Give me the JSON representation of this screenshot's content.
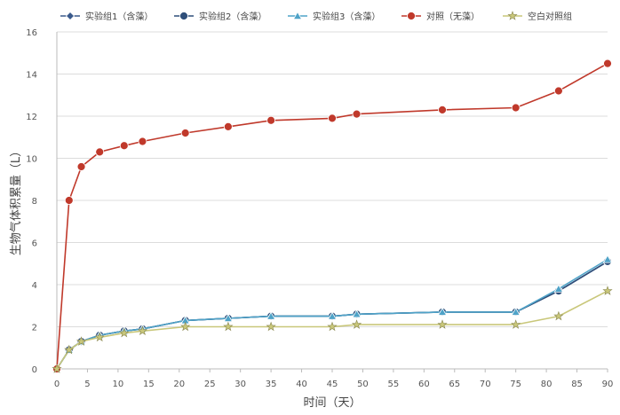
{
  "chart_data": {
    "type": "line",
    "title": "",
    "xlabel": "时间（天）",
    "ylabel": "生物气体积累量（L）",
    "xlim": [
      0,
      90
    ],
    "ylim": [
      0,
      16
    ],
    "x_ticks": [
      "0",
      "5",
      "10",
      "15",
      "20",
      "25",
      "30",
      "35",
      "40",
      "45",
      "50",
      "55",
      "60",
      "65",
      "70",
      "75",
      "80",
      "85",
      "90"
    ],
    "y_ticks": [
      "0",
      "2",
      "4",
      "6",
      "8",
      "10",
      "12",
      "14",
      "16"
    ],
    "grid": {
      "horizontal": true,
      "vertical": false
    },
    "legend_position": "top",
    "series": [
      {
        "name": "实验组1（含藻）",
        "color": "#3a5a8c",
        "marker": "diamond",
        "x": [
          0,
          2,
          4,
          7,
          11,
          14,
          21,
          28,
          35,
          45,
          49,
          63,
          75,
          82,
          90
        ],
        "y": [
          0,
          0.9,
          1.3,
          1.6,
          1.8,
          1.9,
          2.3,
          2.4,
          2.5,
          2.5,
          2.6,
          2.7,
          2.7,
          3.7,
          5.1
        ]
      },
      {
        "name": "实验组2（含藻）",
        "color": "#2f4f7a",
        "marker": "circle",
        "x": [
          0,
          2,
          4,
          7,
          11,
          14,
          21,
          28,
          35,
          45,
          49,
          63,
          75,
          82,
          90
        ],
        "y": [
          0,
          0.9,
          1.3,
          1.6,
          1.8,
          1.9,
          2.3,
          2.4,
          2.5,
          2.5,
          2.6,
          2.7,
          2.7,
          3.7,
          5.1
        ]
      },
      {
        "name": "实验组3（含藻）",
        "color": "#4fa3c8",
        "marker": "triangle",
        "x": [
          0,
          2,
          4,
          7,
          11,
          14,
          21,
          28,
          35,
          45,
          49,
          63,
          75,
          82,
          90
        ],
        "y": [
          0,
          0.9,
          1.3,
          1.6,
          1.8,
          1.9,
          2.3,
          2.4,
          2.5,
          2.5,
          2.6,
          2.7,
          2.7,
          3.8,
          5.2
        ]
      },
      {
        "name": "对照（无藻）",
        "color": "#c0392b",
        "marker": "circle",
        "x": [
          0,
          2,
          4,
          7,
          11,
          14,
          21,
          28,
          35,
          45,
          49,
          63,
          75,
          82,
          90
        ],
        "y": [
          0,
          8.0,
          9.6,
          10.3,
          10.6,
          10.8,
          11.2,
          11.5,
          11.8,
          11.9,
          12.1,
          12.3,
          12.4,
          13.2,
          14.5
        ]
      },
      {
        "name": "空白对照组",
        "color": "#c9c77a",
        "marker": "star",
        "x": [
          0,
          2,
          4,
          7,
          11,
          14,
          21,
          28,
          35,
          45,
          49,
          63,
          75,
          82,
          90
        ],
        "y": [
          0,
          0.9,
          1.3,
          1.5,
          1.7,
          1.8,
          2.0,
          2.0,
          2.0,
          2.0,
          2.1,
          2.1,
          2.1,
          2.5,
          3.7
        ]
      }
    ]
  }
}
